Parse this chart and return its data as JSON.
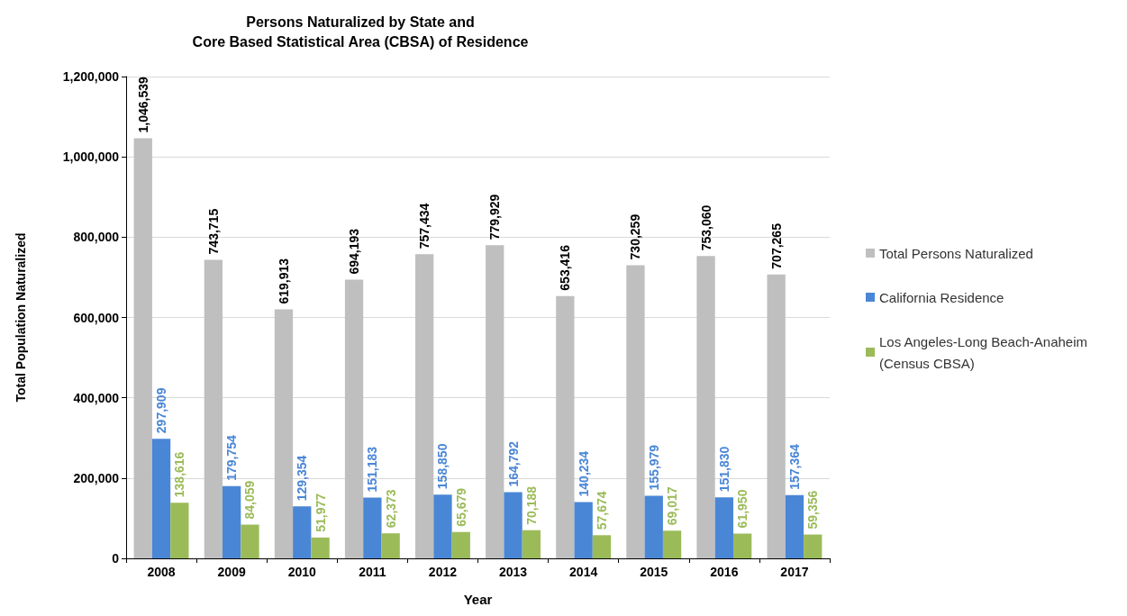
{
  "chart_data": {
    "type": "bar",
    "title": "Persons Naturalized by State and\nCore Based Statistical Area (CBSA) of Residence",
    "xlabel": "Year",
    "ylabel": "Total Population Naturalized",
    "categories": [
      "2008",
      "2009",
      "2010",
      "2011",
      "2012",
      "2013",
      "2014",
      "2015",
      "2016",
      "2017"
    ],
    "series": [
      {
        "name": "Total Persons Naturalized",
        "color": "#bfbfbf",
        "values": [
          1046539,
          743715,
          619913,
          694193,
          757434,
          779929,
          653416,
          730259,
          753060,
          707265
        ],
        "value_labels": [
          "1,046,539",
          "743,715",
          "619,913",
          "694,193",
          "757,434",
          "779,929",
          "653,416",
          "730,259",
          "753,060",
          "707,265"
        ]
      },
      {
        "name": "California Residence",
        "color": "#4a86d6",
        "values": [
          297909,
          179754,
          129354,
          151183,
          158850,
          164792,
          140234,
          155979,
          151830,
          157364
        ],
        "value_labels": [
          "297,909",
          "179,754",
          "129,354",
          "151,183",
          "158,850",
          "164,792",
          "140,234",
          "155,979",
          "151,830",
          "157,364"
        ]
      },
      {
        "name": "Los Angeles-Long Beach-Anaheim (Census CBSA)",
        "color": "#9bbb59",
        "values": [
          138616,
          84059,
          51977,
          62373,
          65679,
          70188,
          57674,
          69017,
          61950,
          59356
        ],
        "value_labels": [
          "138,616",
          "84,059",
          "51,977",
          "62,373",
          "65,679",
          "70,188",
          "57,674",
          "69,017",
          "61,950",
          "59,356"
        ]
      }
    ],
    "ylim": [
      0,
      1200000
    ],
    "yticks": [
      0,
      {
        "value": 200000,
        "label": "200,000"
      },
      {
        "value": 400000,
        "label": "400,000"
      },
      {
        "value": 600000,
        "label": "600,000"
      },
      {
        "value": 800000,
        "label": "800,000"
      },
      {
        "value": 1000000,
        "label": "1,000,000"
      },
      {
        "value": 1200000,
        "label": "1,200,000"
      }
    ],
    "grid": "y",
    "legend": "right"
  }
}
